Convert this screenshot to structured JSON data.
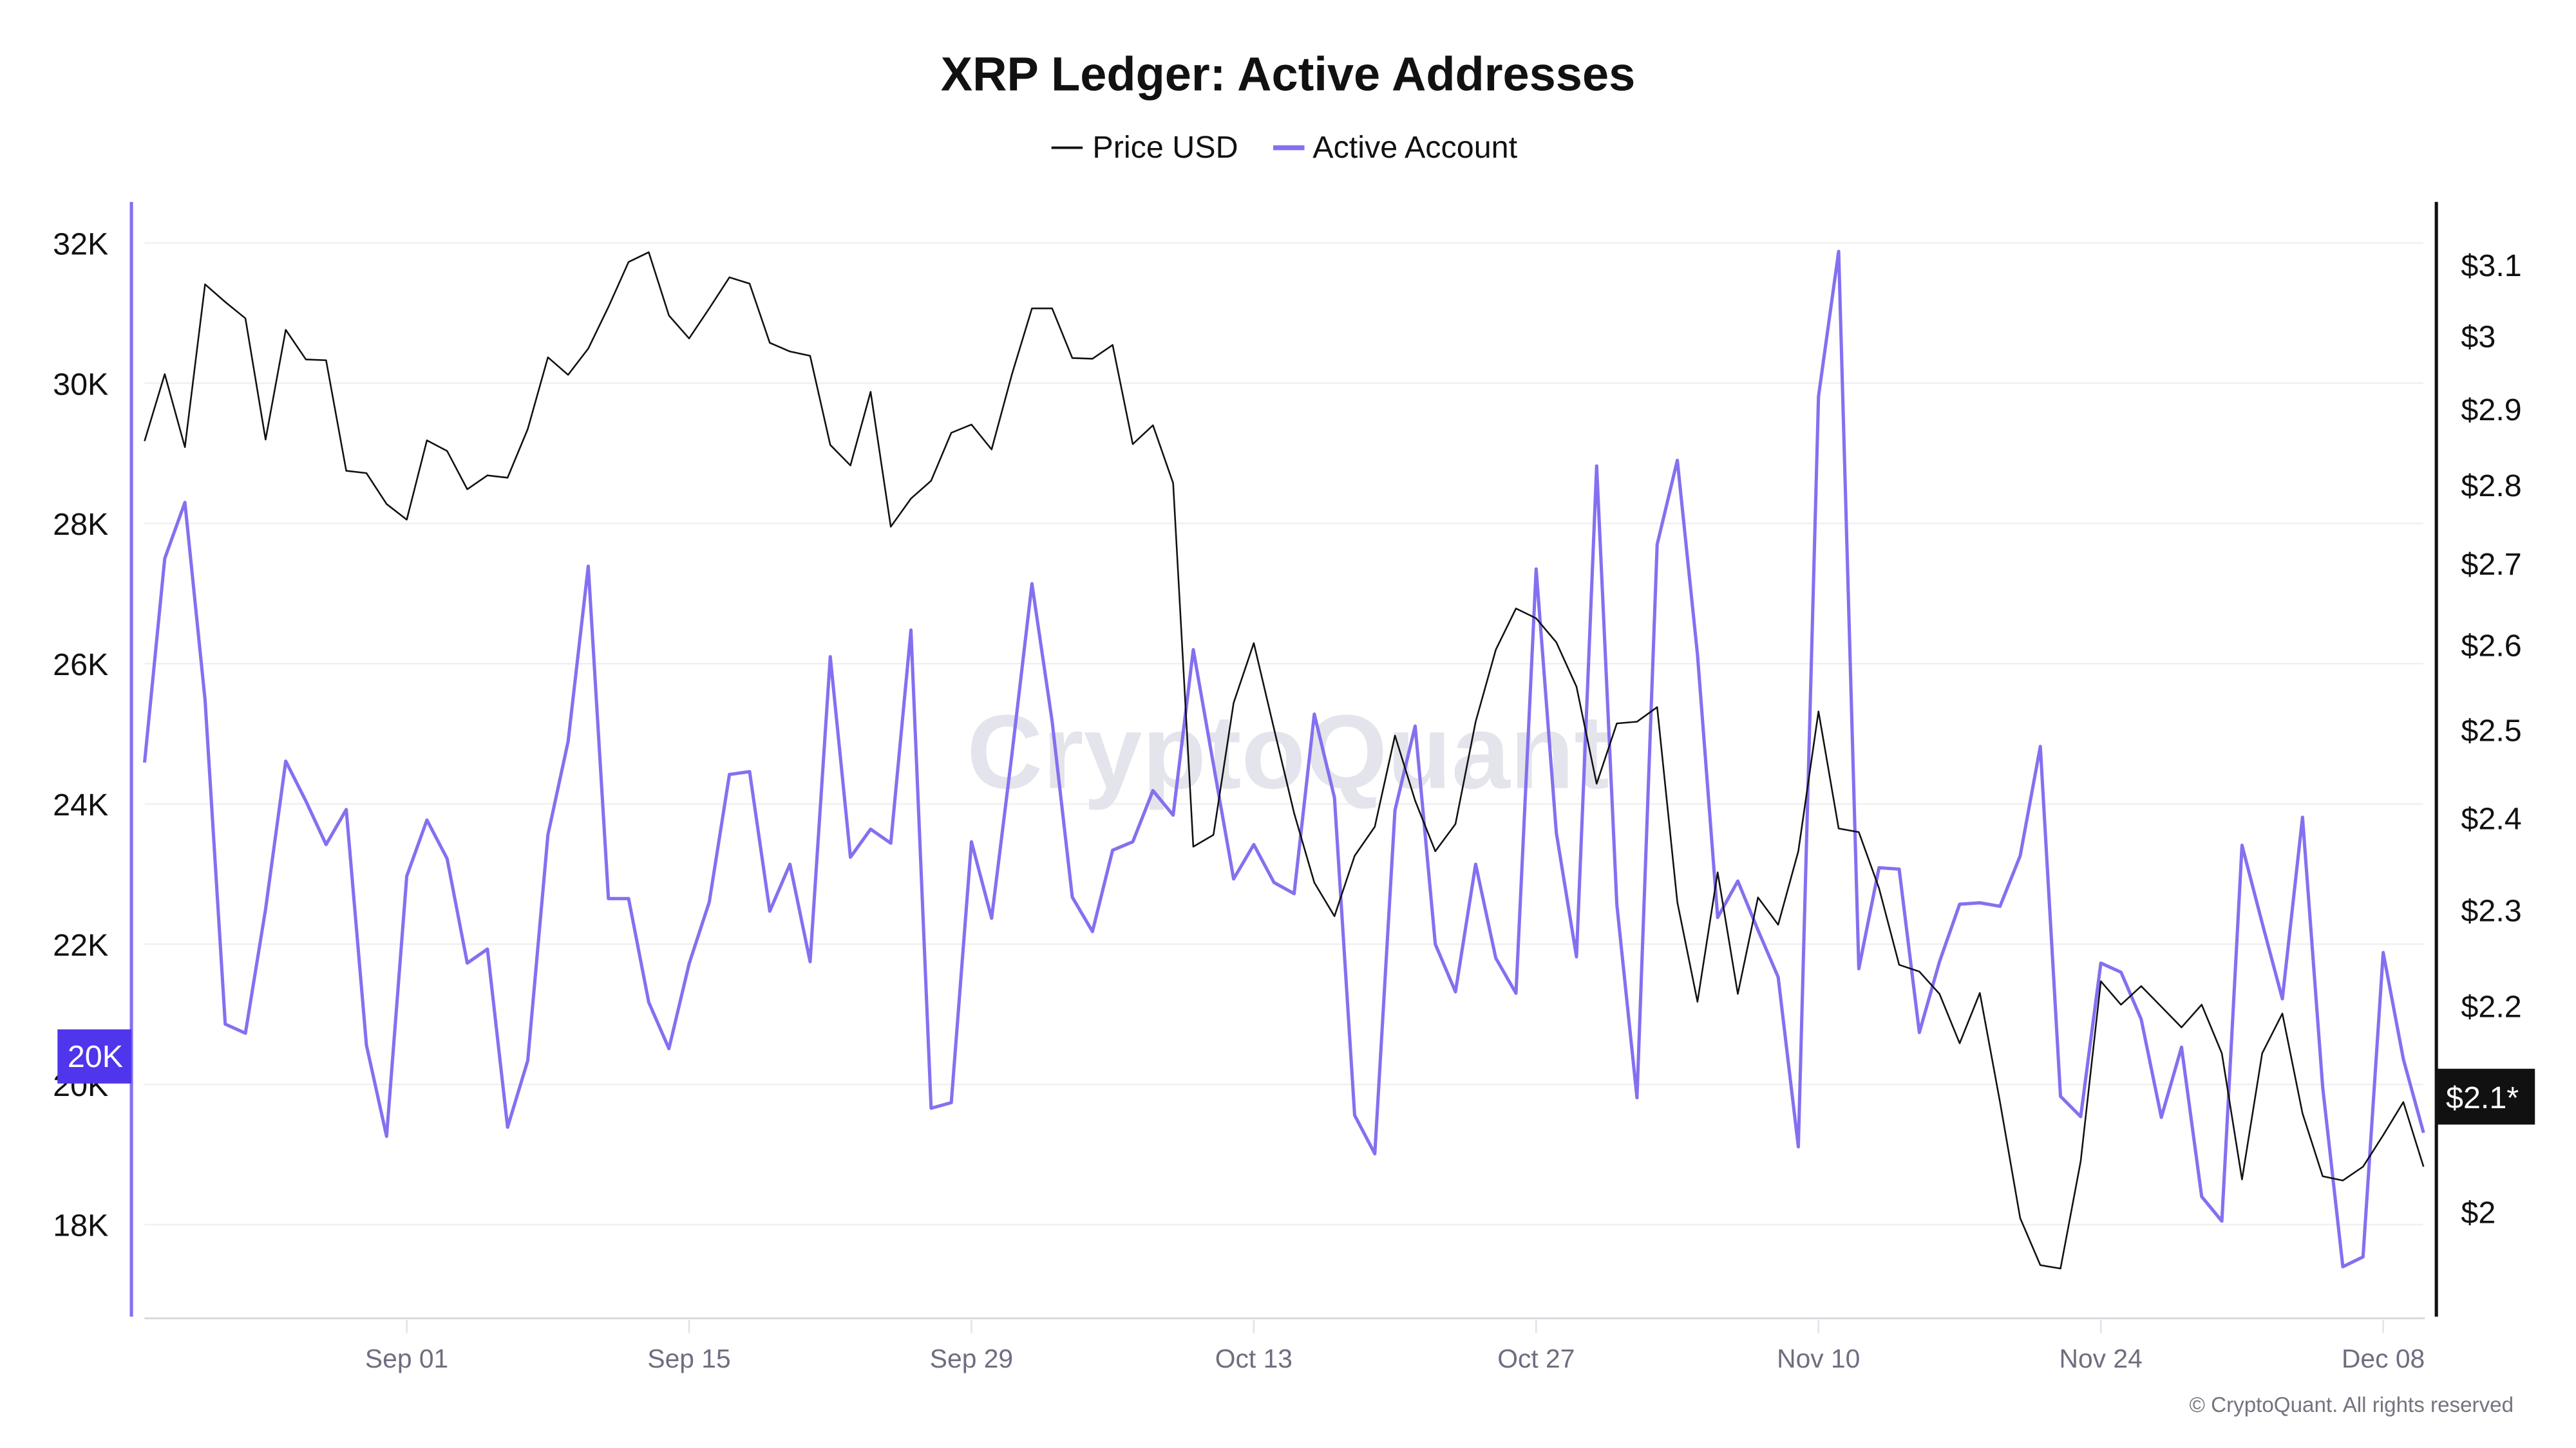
{
  "chart_data": {
    "type": "line",
    "title": "XRP Ledger: Active Addresses",
    "legend": {
      "placement": "top-center",
      "entries": [
        "Price USD",
        "Active Account"
      ]
    },
    "colors": {
      "price": "#111111",
      "active": "#8370f0",
      "left_badge": "#4f35ec",
      "right_badge": "#111111",
      "grid": "#f0f0f2",
      "watermark": "#e4e4ec"
    },
    "grid": true,
    "watermark": "CryptoQuant",
    "footer": "© CryptoQuant. All rights reserved",
    "x": [
      "Aug 19",
      "Aug 20",
      "Aug 21",
      "Aug 22",
      "Aug 23",
      "Aug 24",
      "Aug 25",
      "Aug 26",
      "Aug 27",
      "Aug 28",
      "Aug 29",
      "Aug 30",
      "Aug 31",
      "Sep 01",
      "Sep 02",
      "Sep 03",
      "Sep 04",
      "Sep 05",
      "Sep 06",
      "Sep 07",
      "Sep 08",
      "Sep 09",
      "Sep 10",
      "Sep 11",
      "Sep 12",
      "Sep 13",
      "Sep 14",
      "Sep 15",
      "Sep 16",
      "Sep 17",
      "Sep 18",
      "Sep 19",
      "Sep 20",
      "Sep 21",
      "Sep 22",
      "Sep 23",
      "Sep 24",
      "Sep 25",
      "Sep 26",
      "Sep 27",
      "Sep 28",
      "Sep 29",
      "Sep 30",
      "Oct 01",
      "Oct 02",
      "Oct 03",
      "Oct 04",
      "Oct 05",
      "Oct 06",
      "Oct 07",
      "Oct 08",
      "Oct 09",
      "Oct 10",
      "Oct 11",
      "Oct 12",
      "Oct 13",
      "Oct 14",
      "Oct 15",
      "Oct 16",
      "Oct 17",
      "Oct 18",
      "Oct 19",
      "Oct 20",
      "Oct 21",
      "Oct 22",
      "Oct 23",
      "Oct 24",
      "Oct 25",
      "Oct 26",
      "Oct 27",
      "Oct 28",
      "Oct 29",
      "Oct 30",
      "Oct 31",
      "Nov 01",
      "Nov 02",
      "Nov 03",
      "Nov 04",
      "Nov 05",
      "Nov 06",
      "Nov 07",
      "Nov 08",
      "Nov 09",
      "Nov 10",
      "Nov 11",
      "Nov 12",
      "Nov 13",
      "Nov 14",
      "Nov 15",
      "Nov 16",
      "Nov 17",
      "Nov 18",
      "Nov 19",
      "Nov 20",
      "Nov 21",
      "Nov 22",
      "Nov 23",
      "Nov 24",
      "Nov 25",
      "Nov 26",
      "Nov 27",
      "Nov 28",
      "Nov 29",
      "Nov 30",
      "Dec 01",
      "Dec 02",
      "Dec 03",
      "Dec 04",
      "Dec 05",
      "Dec 06",
      "Dec 07",
      "Dec 08",
      "Dec 09",
      "Dec 10"
    ],
    "x_tick_labels": [
      "Sep 01",
      "Sep 15",
      "Sep 29",
      "Oct 13",
      "Oct 27",
      "Nov 10",
      "Nov 24",
      "Dec 08"
    ],
    "y_left": {
      "series": "Active Account",
      "scale": "linear",
      "range": [
        16700,
        32600
      ],
      "ticks": [
        32000,
        30000,
        28000,
        26000,
        24000,
        22000,
        20000,
        18000
      ],
      "tick_labels": [
        "32K",
        "30K",
        "28K",
        "26K",
        "24K",
        "22K",
        "20K",
        "18K"
      ],
      "badge": "20K"
    },
    "y_right": {
      "series": "Price USD",
      "scale": "log",
      "range": [
        1.9,
        3.25
      ],
      "ticks": [
        3.1,
        3.0,
        2.9,
        2.8,
        2.7,
        2.6,
        2.5,
        2.4,
        2.3,
        2.2,
        2.0
      ],
      "tick_labels": [
        "$3.1",
        "$3",
        "$2.9",
        "$2.8",
        "$2.7",
        "$2.6",
        "$2.5",
        "$2.4",
        "$2.3",
        "$2.2",
        "$2"
      ],
      "badge": "$2.1*"
    },
    "series": [
      {
        "name": "Price USD",
        "axis": "right",
        "values": [
          2.857,
          2.947,
          2.849,
          3.072,
          3.047,
          3.024,
          2.859,
          3.008,
          2.967,
          2.966,
          2.818,
          2.815,
          2.775,
          2.755,
          2.858,
          2.844,
          2.794,
          2.812,
          2.809,
          2.873,
          2.97,
          2.946,
          2.982,
          3.04,
          3.104,
          3.118,
          3.028,
          2.996,
          3.038,
          3.082,
          3.073,
          2.99,
          2.978,
          2.972,
          2.852,
          2.825,
          2.923,
          2.746,
          2.782,
          2.805,
          2.868,
          2.879,
          2.846,
          2.946,
          3.038,
          3.038,
          2.969,
          2.968,
          2.987,
          2.853,
          2.878,
          2.802,
          2.368,
          2.381,
          2.531,
          2.602,
          2.501,
          2.405,
          2.329,
          2.293,
          2.358,
          2.39,
          2.493,
          2.419,
          2.363,
          2.393,
          2.509,
          2.594,
          2.644,
          2.632,
          2.603,
          2.55,
          2.438,
          2.507,
          2.509,
          2.526,
          2.308,
          2.204,
          2.34,
          2.212,
          2.313,
          2.284,
          2.363,
          2.521,
          2.388,
          2.384,
          2.323,
          2.242,
          2.235,
          2.212,
          2.162,
          2.213,
          2.104,
          1.994,
          1.951,
          1.948,
          2.047,
          2.225,
          2.201,
          2.22,
          2.199,
          2.178,
          2.201,
          2.152,
          2.03,
          2.152,
          2.192,
          2.093,
          2.033,
          2.029,
          2.042,
          2.072,
          2.104,
          2.042
        ]
      },
      {
        "name": "Active Account",
        "axis": "left",
        "values": [
          24590,
          27500,
          28300,
          25480,
          20860,
          20730,
          22500,
          24610,
          24040,
          23420,
          23920,
          20560,
          19260,
          22970,
          23770,
          23220,
          21730,
          21930,
          19390,
          20340,
          23560,
          24890,
          27390,
          22650,
          22650,
          21170,
          20510,
          21720,
          22600,
          24420,
          24460,
          22470,
          23140,
          21750,
          26100,
          23240,
          23640,
          23440,
          26480,
          19660,
          19740,
          23460,
          22370,
          24690,
          27140,
          25180,
          22670,
          22180,
          23340,
          23460,
          24190,
          23840,
          26200,
          24560,
          22930,
          23420,
          22880,
          22720,
          25280,
          24090,
          19560,
          19010,
          23910,
          25110,
          22000,
          21320,
          23140,
          21800,
          21300,
          27350,
          23590,
          21820,
          28820,
          22570,
          19810,
          27700,
          28900,
          26130,
          22380,
          22900,
          22200,
          21530,
          19110,
          29810,
          31880,
          21650,
          23090,
          23070,
          20740,
          21750,
          22570,
          22590,
          22540,
          23260,
          24820,
          19830,
          19540,
          21730,
          21600,
          20930,
          19530,
          20530,
          18400,
          18050,
          23410,
          22300,
          21220,
          23810,
          19960,
          17400,
          17540,
          21880,
          20360,
          19310
        ]
      }
    ]
  }
}
